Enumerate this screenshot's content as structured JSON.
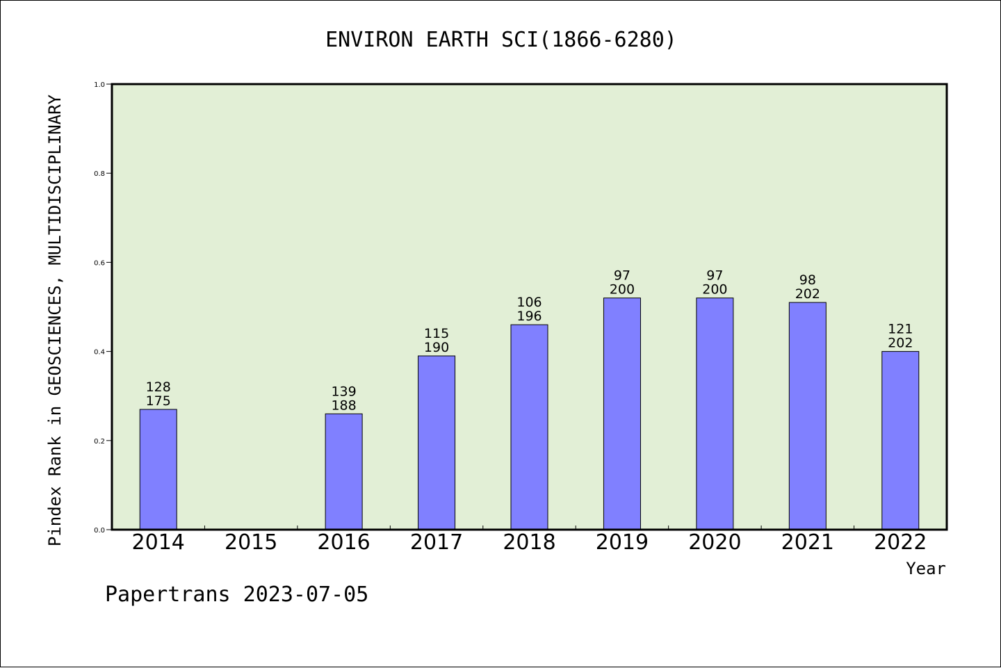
{
  "chart_data": {
    "type": "bar",
    "title": "ENVIRON EARTH SCI(1866-6280)",
    "xlabel": "Year",
    "ylabel": "Pindex Rank in GEOSCIENCES, MULTIDISCIPLINARY",
    "ylim": [
      0,
      1.0
    ],
    "yticks": [
      "0.0",
      "0.2",
      "0.4",
      "0.6",
      "0.8",
      "1.0"
    ],
    "categories": [
      "2014",
      "2015",
      "2016",
      "2017",
      "2018",
      "2019",
      "2020",
      "2021",
      "2022"
    ],
    "values": [
      0.27,
      null,
      0.26,
      0.39,
      0.46,
      0.52,
      0.52,
      0.51,
      0.4
    ],
    "rank_labels": [
      "128",
      "",
      "139",
      "115",
      "106",
      "97",
      "97",
      "98",
      "121"
    ],
    "total_labels": [
      "175",
      "",
      "188",
      "190",
      "196",
      "200",
      "200",
      "202",
      "202"
    ],
    "legend": "none",
    "grid": false
  },
  "footer": "Papertrans 2023-07-05",
  "colors": {
    "plot_background": "#e2efd6",
    "bar_fill": "#8080ff",
    "axis": "#000000"
  }
}
